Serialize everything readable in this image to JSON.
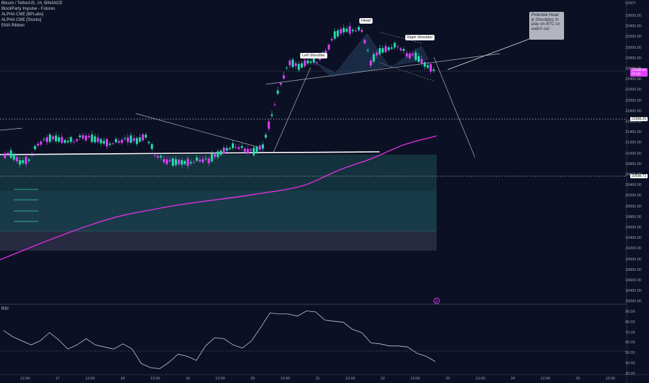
{
  "header": {
    "symbol_line": "Bitcoin / TetherUS, 1h, BINANCE",
    "indicator_1": "BlockParty Impulse - Futures",
    "indicator_2": "ALPHA CME [BPLabs]",
    "indicator_3": "ALPHA CME [Stocks]",
    "indicator_4": "EMA Ribbon"
  },
  "currency": "USDT",
  "price_axis": [
    "23600.00",
    "23400.00",
    "23200.00",
    "23000.00",
    "22800.00",
    "22600.00",
    "22400.00",
    "22200.00",
    "22000.00",
    "21800.00",
    "21600.00",
    "21400.00",
    "21200.00",
    "21000.00",
    "20800.00",
    "20600.00",
    "20400.00",
    "20200.00",
    "20000.00",
    "19800.00",
    "19600.00",
    "19400.00",
    "19200.00",
    "19000.00",
    "18800.00",
    "18600.00",
    "18400.00",
    "18200.00"
  ],
  "price_tags": {
    "last_price": "22568.82",
    "countdown": "07:03",
    "level_upper": "21658.29",
    "level_lower": "20598.71"
  },
  "time_axis": [
    "12:00",
    "17",
    "12:00",
    "18",
    "12:00",
    "19",
    "12:00",
    "20",
    "12:00",
    "21",
    "12:00",
    "22",
    "12:00",
    "23",
    "12:00",
    "24",
    "12:00",
    "25",
    "12:00"
  ],
  "rsi": {
    "label": "RSI",
    "axis": [
      "90.00",
      "80.00",
      "70.00",
      "60.00",
      "50.00",
      "40.00",
      "30.00"
    ]
  },
  "annotations": {
    "left_shoulder": "Left Shoulder",
    "head": "Head",
    "right_shoulder": "Right Shoulder",
    "note": "Potential Head & Shoulders In play on BTC so watch out"
  },
  "colors": {
    "background": "#0c1024",
    "bull": "#26e0b0",
    "bear": "#e040fb",
    "ema": "#e030e0",
    "accent": "#e040fb"
  },
  "chart_data": {
    "type": "candlestick",
    "title": "Bitcoin / TetherUS, 1h, BINANCE",
    "ylim": [
      18200,
      23600
    ],
    "series": [
      {
        "name": "BTCUSDT close (approx.)",
        "values": [
          20950,
          20800,
          20850,
          21150,
          21250,
          21250,
          21200,
          21200,
          21300,
          21250,
          21200,
          21150,
          21200,
          21250,
          21200,
          21300,
          20950,
          20850,
          20800,
          20800,
          20800,
          20850,
          20850,
          20950,
          21050,
          21100,
          21050,
          21000,
          21100,
          21700,
          22300,
          22700,
          22600,
          22700,
          22700,
          22900,
          23200,
          23300,
          23300,
          23300,
          22700,
          22900,
          22950,
          23000,
          22850,
          22800,
          22650,
          22550
        ]
      }
    ]
  }
}
